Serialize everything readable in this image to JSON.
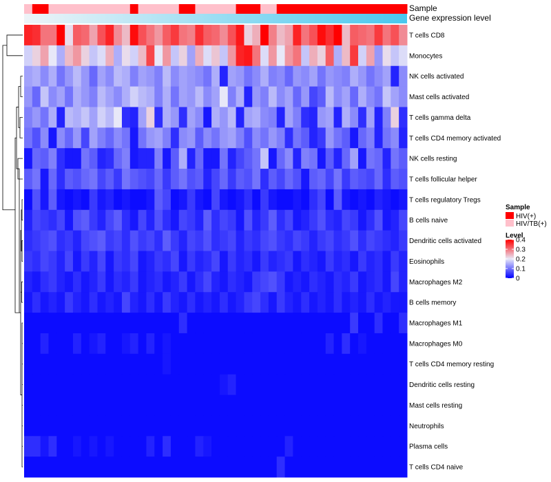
{
  "chart_data": {
    "type": "heatmap",
    "title": "",
    "annotation_labels": [
      "Sample",
      "Gene expression level"
    ],
    "sample_legend": {
      "title": "Sample",
      "entries": [
        {
          "name": "HIV(+)",
          "color": "#ff0000"
        },
        {
          "name": "HIV/TB(+)",
          "color": "#ffc0cb"
        }
      ]
    },
    "level_legend": {
      "title": "Level",
      "ticks": [
        0.4,
        0.3,
        0.2,
        0.1,
        0
      ],
      "range": [
        0,
        0.4
      ],
      "colors": {
        "low": "#0000ff",
        "mid": "#e8e8f8",
        "high": "#ff0000"
      }
    },
    "expression_bar": {
      "from": "#eef4f8",
      "to": "#49c8ee"
    },
    "columns": 47,
    "sample_groups": [
      1,
      0,
      0,
      1,
      1,
      1,
      1,
      1,
      1,
      1,
      1,
      1,
      1,
      0,
      1,
      1,
      1,
      1,
      1,
      0,
      0,
      1,
      1,
      1,
      1,
      1,
      0,
      0,
      0,
      1,
      1,
      0,
      0,
      0,
      0,
      0,
      0,
      0,
      0,
      0,
      0,
      0,
      0,
      0,
      0,
      0,
      0
    ],
    "rows": [
      {
        "label": "T cells CD8",
        "values": [
          0.37,
          0.36,
          0.3,
          0.3,
          0.4,
          0.21,
          0.32,
          0.31,
          0.26,
          0.33,
          0.37,
          0.28,
          0.24,
          0.39,
          0.33,
          0.3,
          0.27,
          0.32,
          0.35,
          0.3,
          0.29,
          0.36,
          0.32,
          0.31,
          0.28,
          0.33,
          0.38,
          0.22,
          0.25,
          0.4,
          0.29,
          0.24,
          0.26,
          0.37,
          0.3,
          0.33,
          0.39,
          0.36,
          0.4,
          0.24,
          0.32,
          0.31,
          0.3,
          0.35,
          0.3,
          0.33,
          0.28
        ]
      },
      {
        "label": "Monocytes",
        "values": [
          0.18,
          0.22,
          0.26,
          0.2,
          0.15,
          0.24,
          0.27,
          0.22,
          0.17,
          0.19,
          0.25,
          0.15,
          0.21,
          0.18,
          0.24,
          0.34,
          0.2,
          0.27,
          0.17,
          0.22,
          0.14,
          0.25,
          0.19,
          0.23,
          0.17,
          0.27,
          0.37,
          0.38,
          0.3,
          0.19,
          0.27,
          0.2,
          0.27,
          0.3,
          0.17,
          0.25,
          0.22,
          0.32,
          0.15,
          0.24,
          0.35,
          0.18,
          0.26,
          0.13,
          0.21,
          0.17,
          0.19
        ]
      },
      {
        "label": "NK cells activated",
        "values": [
          0.14,
          0.15,
          0.12,
          0.15,
          0.1,
          0.13,
          0.16,
          0.13,
          0.09,
          0.14,
          0.12,
          0.16,
          0.15,
          0.11,
          0.14,
          0.13,
          0.11,
          0.16,
          0.12,
          0.14,
          0.13,
          0.12,
          0.1,
          0.15,
          0.03,
          0.14,
          0.13,
          0.1,
          0.12,
          0.15,
          0.11,
          0.12,
          0.09,
          0.13,
          0.12,
          0.14,
          0.1,
          0.13,
          0.12,
          0.11,
          0.15,
          0.13,
          0.1,
          0.12,
          0.14,
          0.03,
          0.12
        ]
      },
      {
        "label": "Mast cells activated",
        "values": [
          0.13,
          0.09,
          0.17,
          0.12,
          0.14,
          0.1,
          0.15,
          0.13,
          0.11,
          0.16,
          0.14,
          0.12,
          0.15,
          0.18,
          0.16,
          0.15,
          0.11,
          0.15,
          0.1,
          0.14,
          0.13,
          0.16,
          0.12,
          0.14,
          0.2,
          0.11,
          0.15,
          0.03,
          0.13,
          0.11,
          0.16,
          0.12,
          0.14,
          0.09,
          0.13,
          0.06,
          0.08,
          0.16,
          0.12,
          0.14,
          0.09,
          0.15,
          0.12,
          0.1,
          0.17,
          0.14,
          0.12
        ]
      },
      {
        "label": "T cells gamma delta",
        "values": [
          0.11,
          0.13,
          0.1,
          0.15,
          0.03,
          0.16,
          0.15,
          0.17,
          0.14,
          0.18,
          0.16,
          0.2,
          0.04,
          0.03,
          0.14,
          0.22,
          0.04,
          0.15,
          0.13,
          0.04,
          0.14,
          0.12,
          0.02,
          0.15,
          0.13,
          0.16,
          0.03,
          0.14,
          0.15,
          0.12,
          0.11,
          0.03,
          0.14,
          0.11,
          0.04,
          0.03,
          0.13,
          0.14,
          0.03,
          0.15,
          0.12,
          0.04,
          0.14,
          0.03,
          0.11,
          0.22,
          0.04
        ]
      },
      {
        "label": "T cells CD4 memory activated",
        "values": [
          0.1,
          0.07,
          0.12,
          0.02,
          0.12,
          0.09,
          0.13,
          0.06,
          0.14,
          0.11,
          0.09,
          0.12,
          0.1,
          0.02,
          0.1,
          0.13,
          0.14,
          0.11,
          0.04,
          0.12,
          0.13,
          0.08,
          0.12,
          0.1,
          0.13,
          0.14,
          0.11,
          0.07,
          0.12,
          0.1,
          0.13,
          0.11,
          0.04,
          0.1,
          0.08,
          0.03,
          0.05,
          0.13,
          0.1,
          0.08,
          0.02,
          0.09,
          0.11,
          0.03,
          0.1,
          0.12,
          0.03
        ]
      },
      {
        "label": "NK cells resting",
        "values": [
          0.02,
          0.09,
          0.08,
          0.11,
          0.04,
          0.02,
          0.02,
          0.1,
          0.08,
          0.03,
          0.04,
          0.09,
          0.11,
          0.02,
          0.03,
          0.03,
          0.11,
          0.02,
          0.08,
          0.15,
          0.03,
          0.09,
          0.02,
          0.02,
          0.1,
          0.03,
          0.06,
          0.08,
          0.1,
          0.17,
          0.02,
          0.09,
          0.12,
          0.03,
          0.11,
          0.1,
          0.02,
          0.08,
          0.03,
          0.09,
          0.14,
          0.02,
          0.1,
          0.09,
          0.03,
          0.1,
          0.08
        ]
      },
      {
        "label": "T cells follicular helper",
        "values": [
          0.08,
          0.1,
          0.02,
          0.09,
          0.04,
          0.08,
          0.07,
          0.09,
          0.1,
          0.06,
          0.08,
          0.05,
          0.1,
          0.08,
          0.07,
          0.06,
          0.09,
          0.05,
          0.08,
          0.1,
          0.07,
          0.08,
          0.03,
          0.06,
          0.09,
          0.05,
          0.08,
          0.07,
          0.1,
          0.04,
          0.08,
          0.06,
          0.09,
          0.07,
          0.02,
          0.08,
          0.09,
          0.06,
          0.1,
          0.05,
          0.08,
          0.07,
          0.06,
          0.09,
          0.04,
          0.08,
          0.07
        ]
      },
      {
        "label": "T cells regulatory  Tregs",
        "values": [
          0.01,
          0.07,
          0.02,
          0.08,
          0.02,
          0.01,
          0.02,
          0.01,
          0.05,
          0.02,
          0.03,
          0.01,
          0.02,
          0.01,
          0.01,
          0.02,
          0.08,
          0.06,
          0.01,
          0.02,
          0.05,
          0.02,
          0.01,
          0.06,
          0.02,
          0.01,
          0.02,
          0.04,
          0.01,
          0.05,
          0.02,
          0.01,
          0.01,
          0.02,
          0.01,
          0.04,
          0.06,
          0.01,
          0.08,
          0.02,
          0.01,
          0.02,
          0.01,
          0.03,
          0.02,
          0.01,
          0.02
        ]
      },
      {
        "label": "B cells naive",
        "values": [
          0.03,
          0.06,
          0.05,
          0.04,
          0.06,
          0.02,
          0.07,
          0.08,
          0.05,
          0.03,
          0.06,
          0.08,
          0.04,
          0.02,
          0.06,
          0.03,
          0.07,
          0.04,
          0.02,
          0.06,
          0.05,
          0.03,
          0.08,
          0.04,
          0.06,
          0.05,
          0.02,
          0.07,
          0.03,
          0.05,
          0.08,
          0.04,
          0.06,
          0.02,
          0.03,
          0.05,
          0.07,
          0.04,
          0.03,
          0.06,
          0.05,
          0.02,
          0.04,
          0.07,
          0.02,
          0.03,
          0.06
        ]
      },
      {
        "label": "Dendritic cells activated",
        "values": [
          0.04,
          0.05,
          0.06,
          0.07,
          0.04,
          0.05,
          0.03,
          0.06,
          0.07,
          0.08,
          0.05,
          0.06,
          0.04,
          0.07,
          0.05,
          0.06,
          0.04,
          0.08,
          0.05,
          0.03,
          0.06,
          0.05,
          0.07,
          0.04,
          0.05,
          0.06,
          0.03,
          0.05,
          0.04,
          0.06,
          0.07,
          0.05,
          0.04,
          0.06,
          0.05,
          0.03,
          0.05,
          0.06,
          0.04,
          0.05,
          0.07,
          0.04,
          0.06,
          0.05,
          0.04,
          0.03,
          0.05
        ]
      },
      {
        "label": "Eosinophils",
        "values": [
          0.05,
          0.04,
          0.06,
          0.05,
          0.03,
          0.06,
          0.02,
          0.05,
          0.03,
          0.06,
          0.02,
          0.05,
          0.04,
          0.06,
          0.02,
          0.03,
          0.05,
          0.04,
          0.06,
          0.02,
          0.05,
          0.03,
          0.04,
          0.06,
          0.02,
          0.05,
          0.03,
          0.04,
          0.02,
          0.05,
          0.03,
          0.04,
          0.05,
          0.02,
          0.04,
          0.03,
          0.02,
          0.05,
          0.03,
          0.04,
          0.02,
          0.05,
          0.03,
          0.04,
          0.02,
          0.05,
          0.03
        ]
      },
      {
        "label": "Macrophages M2",
        "values": [
          0.03,
          0.02,
          0.04,
          0.05,
          0.03,
          0.02,
          0.04,
          0.02,
          0.03,
          0.05,
          0.02,
          0.04,
          0.03,
          0.05,
          0.02,
          0.03,
          0.04,
          0.02,
          0.03,
          0.05,
          0.02,
          0.04,
          0.06,
          0.03,
          0.02,
          0.04,
          0.03,
          0.02,
          0.05,
          0.06,
          0.07,
          0.05,
          0.02,
          0.03,
          0.02,
          0.04,
          0.03,
          0.02,
          0.04,
          0.03,
          0.05,
          0.02,
          0.03,
          0.04,
          0.02,
          0.06,
          0.03
        ]
      },
      {
        "label": "B cells memory",
        "values": [
          0.02,
          0.04,
          0.02,
          0.03,
          0.02,
          0.05,
          0.03,
          0.02,
          0.04,
          0.02,
          0.03,
          0.02,
          0.06,
          0.03,
          0.02,
          0.04,
          0.02,
          0.05,
          0.03,
          0.02,
          0.04,
          0.02,
          0.03,
          0.02,
          0.04,
          0.02,
          0.03,
          0.05,
          0.06,
          0.04,
          0.02,
          0.05,
          0.03,
          0.02,
          0.04,
          0.02,
          0.03,
          0.02,
          0.04,
          0.02,
          0.03,
          0.02,
          0.04,
          0.02,
          0.03,
          0.02,
          0.02
        ]
      },
      {
        "label": "Macrophages M1",
        "values": [
          0.01,
          0.01,
          0.01,
          0.01,
          0.01,
          0.01,
          0.01,
          0.01,
          0.01,
          0.01,
          0.01,
          0.01,
          0.01,
          0.01,
          0.01,
          0.01,
          0.01,
          0.01,
          0.01,
          0.04,
          0.01,
          0.01,
          0.01,
          0.01,
          0.01,
          0.01,
          0.01,
          0.01,
          0.01,
          0.01,
          0.01,
          0.01,
          0.01,
          0.01,
          0.01,
          0.01,
          0.01,
          0.01,
          0.01,
          0.01,
          0.05,
          0.01,
          0.01,
          0.04,
          0.01,
          0.01,
          0.04
        ]
      },
      {
        "label": "Macrophages M0",
        "values": [
          0.01,
          0.01,
          0.03,
          0.01,
          0.01,
          0.01,
          0.03,
          0.01,
          0.02,
          0.03,
          0.01,
          0.01,
          0.02,
          0.03,
          0.01,
          0.03,
          0.01,
          0.02,
          0.01,
          0.01,
          0.01,
          0.01,
          0.01,
          0.01,
          0.01,
          0.01,
          0.01,
          0.01,
          0.01,
          0.01,
          0.01,
          0.01,
          0.01,
          0.01,
          0.01,
          0.01,
          0.01,
          0.03,
          0.01,
          0.04,
          0.01,
          0.02,
          0.01,
          0.01,
          0.01,
          0.01,
          0.01
        ]
      },
      {
        "label": "T cells CD4 memory resting",
        "values": [
          0.01,
          0.01,
          0.01,
          0.01,
          0.01,
          0.01,
          0.01,
          0.01,
          0.01,
          0.01,
          0.01,
          0.01,
          0.01,
          0.01,
          0.01,
          0.01,
          0.01,
          0.02,
          0.01,
          0.01,
          0.01,
          0.01,
          0.01,
          0.01,
          0.01,
          0.01,
          0.01,
          0.01,
          0.01,
          0.01,
          0.01,
          0.01,
          0.01,
          0.01,
          0.01,
          0.01,
          0.01,
          0.01,
          0.01,
          0.01,
          0.01,
          0.01,
          0.01,
          0.01,
          0.01,
          0.01,
          0.01
        ]
      },
      {
        "label": "Dendritic cells resting",
        "values": [
          0.01,
          0.01,
          0.01,
          0.01,
          0.01,
          0.01,
          0.01,
          0.01,
          0.01,
          0.01,
          0.01,
          0.01,
          0.01,
          0.01,
          0.01,
          0.01,
          0.01,
          0.01,
          0.01,
          0.01,
          0.01,
          0.01,
          0.01,
          0.01,
          0.02,
          0.03,
          0.01,
          0.01,
          0.01,
          0.01,
          0.01,
          0.01,
          0.01,
          0.01,
          0.01,
          0.01,
          0.01,
          0.01,
          0.01,
          0.01,
          0.01,
          0.01,
          0.01,
          0.01,
          0.01,
          0.01,
          0.01
        ]
      },
      {
        "label": "Mast cells resting",
        "values": [
          0.01,
          0.01,
          0.01,
          0.01,
          0.01,
          0.01,
          0.01,
          0.01,
          0.01,
          0.01,
          0.01,
          0.01,
          0.01,
          0.01,
          0.01,
          0.01,
          0.01,
          0.01,
          0.01,
          0.01,
          0.01,
          0.01,
          0.01,
          0.01,
          0.01,
          0.01,
          0.01,
          0.01,
          0.01,
          0.01,
          0.01,
          0.01,
          0.01,
          0.01,
          0.01,
          0.01,
          0.01,
          0.01,
          0.01,
          0.01,
          0.01,
          0.01,
          0.01,
          0.01,
          0.01,
          0.01,
          0.01
        ]
      },
      {
        "label": "Neutrophils",
        "values": [
          0.01,
          0.01,
          0.01,
          0.01,
          0.01,
          0.01,
          0.01,
          0.01,
          0.01,
          0.01,
          0.01,
          0.01,
          0.01,
          0.01,
          0.01,
          0.01,
          0.01,
          0.01,
          0.01,
          0.01,
          0.01,
          0.01,
          0.01,
          0.01,
          0.01,
          0.01,
          0.01,
          0.01,
          0.01,
          0.01,
          0.01,
          0.01,
          0.01,
          0.01,
          0.01,
          0.01,
          0.01,
          0.01,
          0.01,
          0.01,
          0.01,
          0.01,
          0.01,
          0.01,
          0.01,
          0.01,
          0.01
        ]
      },
      {
        "label": "Plasma cells",
        "values": [
          0.04,
          0.04,
          0.02,
          0.04,
          0.01,
          0.01,
          0.02,
          0.01,
          0.02,
          0.01,
          0.02,
          0.01,
          0.01,
          0.01,
          0.01,
          0.03,
          0.01,
          0.04,
          0.01,
          0.01,
          0.01,
          0.03,
          0.02,
          0.01,
          0.01,
          0.01,
          0.01,
          0.01,
          0.01,
          0.01,
          0.01,
          0.01,
          0.03,
          0.01,
          0.01,
          0.01,
          0.01,
          0.01,
          0.01,
          0.01,
          0.01,
          0.01,
          0.01,
          0.01,
          0.01,
          0.01,
          0.01
        ]
      },
      {
        "label": "T cells CD4 naive",
        "values": [
          0.01,
          0.01,
          0.01,
          0.01,
          0.01,
          0.01,
          0.01,
          0.01,
          0.01,
          0.01,
          0.01,
          0.01,
          0.01,
          0.01,
          0.01,
          0.01,
          0.01,
          0.01,
          0.01,
          0.01,
          0.01,
          0.01,
          0.01,
          0.01,
          0.01,
          0.01,
          0.01,
          0.01,
          0.01,
          0.01,
          0.01,
          0.04,
          0.01,
          0.01,
          0.01,
          0.01,
          0.01,
          0.01,
          0.01,
          0.01,
          0.01,
          0.01,
          0.01,
          0.01,
          0.01,
          0.01,
          0.01
        ]
      }
    ]
  }
}
